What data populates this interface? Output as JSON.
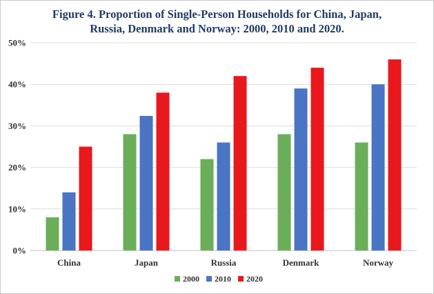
{
  "title_line1": "Figure 4. Proportion of Single-Person Households for China, Japan,",
  "title_line2": "Russia, Denmark and Norway: 2000, 2010 and 2020.",
  "chart_data": {
    "type": "bar",
    "title": "Figure 4. Proportion of Single-Person Households for China, Japan, Russia, Denmark and Norway: 2000, 2010 and 2020.",
    "xlabel": "",
    "ylabel": "",
    "categories": [
      "China",
      "Japan",
      "Russia",
      "Denmark",
      "Norway"
    ],
    "series": [
      {
        "name": "2000",
        "color": "#6aae5a",
        "values": [
          8,
          28,
          22,
          28,
          26
        ]
      },
      {
        "name": "2010",
        "color": "#4a74c4",
        "values": [
          14,
          32.4,
          26,
          39,
          40
        ]
      },
      {
        "name": "2020",
        "color": "#e8181c",
        "values": [
          25,
          38,
          42,
          44,
          46
        ]
      }
    ],
    "ylim": [
      0,
      50
    ],
    "yticks": [
      0,
      10,
      20,
      30,
      40,
      50
    ],
    "ytick_labels": [
      "0%",
      "10%",
      "20%",
      "30%",
      "40%",
      "50%"
    ],
    "grid": true,
    "legend": "bottom-center"
  }
}
